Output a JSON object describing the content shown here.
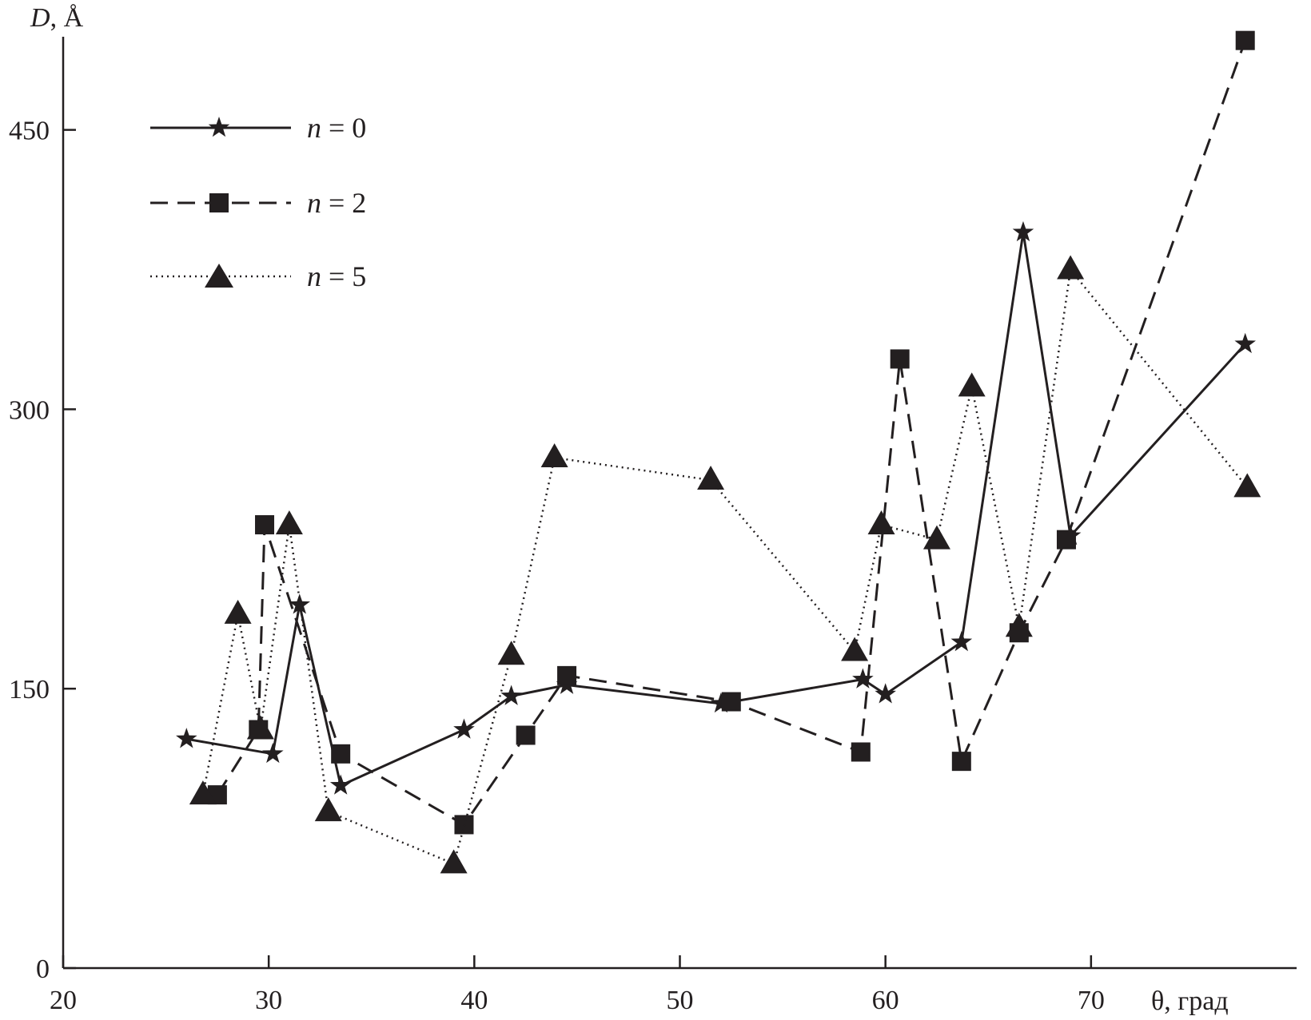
{
  "chart_data": {
    "type": "line",
    "title": "",
    "xlabel": "θ, град",
    "ylabel_var": "D",
    "ylabel_unit": ", Å",
    "xlim": [
      20,
      80
    ],
    "ylim": [
      0,
      500
    ],
    "xticks": [
      20,
      30,
      40,
      50,
      60,
      70
    ],
    "yticks": [
      0,
      150,
      300,
      450
    ],
    "grid": false,
    "legend_position": "top-left",
    "series": [
      {
        "name_var": "n",
        "name_rest": " = 0",
        "line_style": "solid",
        "marker": "star",
        "color": "#231f20",
        "x": [
          26.0,
          30.2,
          31.5,
          33.5,
          39.5,
          41.8,
          44.5,
          52.0,
          58.9,
          60.0,
          63.7,
          66.7,
          69.0,
          77.5
        ],
        "y": [
          123,
          115,
          195,
          98,
          128,
          146,
          152,
          142,
          155,
          147,
          175,
          395,
          232,
          335
        ]
      },
      {
        "name_var": "n",
        "name_rest": " = 2",
        "line_style": "dashed",
        "marker": "square",
        "color": "#231f20",
        "x": [
          27.5,
          29.5,
          29.8,
          33.5,
          39.5,
          42.5,
          44.5,
          52.5,
          58.8,
          60.7,
          63.7,
          66.5,
          68.8,
          77.5
        ],
        "y": [
          93,
          128,
          238,
          115,
          77,
          125,
          157,
          143,
          116,
          327,
          111,
          180,
          230,
          498
        ]
      },
      {
        "name_var": "n",
        "name_rest": " = 5",
        "line_style": "dotted",
        "marker": "triangle",
        "color": "#231f20",
        "x": [
          26.8,
          28.5,
          29.6,
          31.0,
          32.9,
          39.0,
          41.8,
          43.9,
          51.5,
          58.5,
          59.8,
          62.5,
          64.2,
          66.5,
          69.0,
          77.6
        ],
        "y": [
          93,
          190,
          128,
          238,
          84,
          56,
          168,
          274,
          262,
          170,
          238,
          230,
          312,
          183,
          375,
          258
        ]
      }
    ]
  }
}
